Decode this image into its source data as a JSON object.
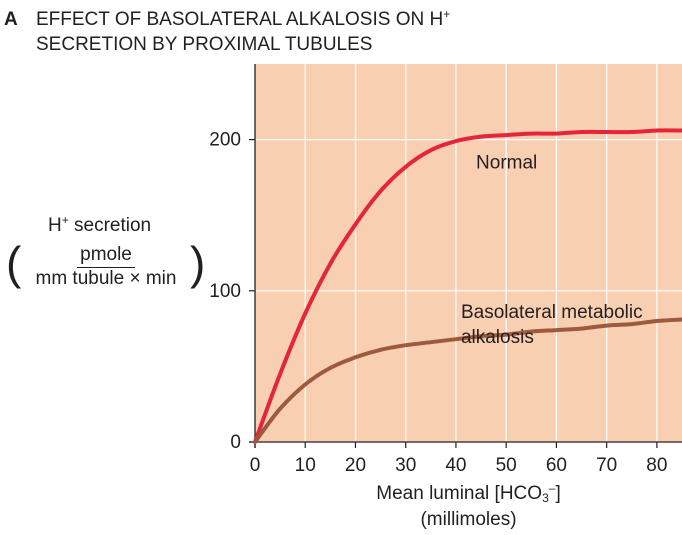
{
  "title": {
    "letter": "A",
    "line1": "EFFECT OF BASOLATERAL ALKALOSIS ON H",
    "line1_sup": "+",
    "line2": "SECRETION BY PROXIMAL TUBULES"
  },
  "y_axis_label": {
    "line1": "H",
    "line1_sup": "+",
    "line1_rest": " secretion",
    "numerator": "pmole",
    "denominator": "mm tubule × min",
    "open_paren": "(",
    "close_paren": ")"
  },
  "x_axis_label": {
    "line1_a": "Mean luminal [HCO",
    "line1_sub": "3",
    "line1_sup": "–",
    "line1_b": "]",
    "line2": "(millimoles)"
  },
  "colors": {
    "plot_background": "#f9cfb2",
    "grid": "#ffffff",
    "normal_curve": "#e4263b",
    "alkalosis_curve": "#9c5a3e",
    "text": "#231f20"
  },
  "chart_data": {
    "type": "line",
    "xlim": [
      0,
      85
    ],
    "ylim": [
      0,
      250
    ],
    "x_ticks": [
      0,
      10,
      20,
      30,
      40,
      50,
      60,
      70,
      80
    ],
    "y_ticks": [
      0,
      100,
      200
    ],
    "grid": true,
    "series": [
      {
        "name": "Normal",
        "label_lines": [
          "Normal"
        ],
        "color": "#e4263b",
        "x": [
          0,
          5,
          10,
          15,
          20,
          25,
          30,
          35,
          40,
          45,
          50,
          55,
          60,
          65,
          70,
          75,
          80,
          85
        ],
        "y": [
          0,
          45,
          85,
          118,
          144,
          166,
          182,
          193,
          199,
          202,
          203,
          204,
          204,
          205,
          205,
          205,
          206,
          206
        ]
      },
      {
        "name": "Basolateral metabolic alkalosis",
        "label_lines": [
          "Basolateral metabolic",
          "alkalosis"
        ],
        "color": "#9c5a3e",
        "x": [
          0,
          5,
          10,
          15,
          20,
          25,
          30,
          35,
          40,
          45,
          50,
          55,
          60,
          65,
          70,
          75,
          80,
          85
        ],
        "y": [
          0,
          22,
          38,
          49,
          56,
          61,
          64,
          66,
          68,
          70,
          71,
          73,
          74,
          75,
          77,
          78,
          80,
          81
        ]
      }
    ]
  }
}
